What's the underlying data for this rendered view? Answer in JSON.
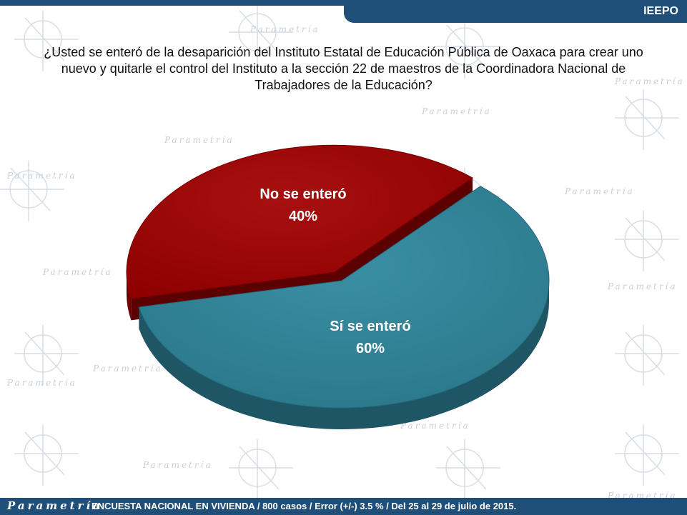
{
  "header": {
    "label": "IEEPO"
  },
  "question": "¿Usted se enteró de la desaparición del Instituto Estatal de Educación Pública de Oaxaca para crear uno nuevo y quitarle el control del Instituto a la sección 22 de maestros de la Coordinadora Nacional de Trabajadores de la Educación?",
  "footer": {
    "brand": "Parametría",
    "note": "ENCUESTA NACIONAL EN VIVIENDA / 800 casos / Error (+/-) 3.5 % / Del 25 al 29 de julio de 2015."
  },
  "chart_data": {
    "type": "pie",
    "categories": [
      "No se enteró",
      "Sí se enteró"
    ],
    "values": [
      40,
      60
    ],
    "value_labels": [
      "40%",
      "60%"
    ],
    "colors": [
      "#a30000",
      "#31869b"
    ],
    "side_colors": [
      "#6e0000",
      "#1f5665"
    ]
  },
  "watermark": {
    "text": "Parametría"
  }
}
